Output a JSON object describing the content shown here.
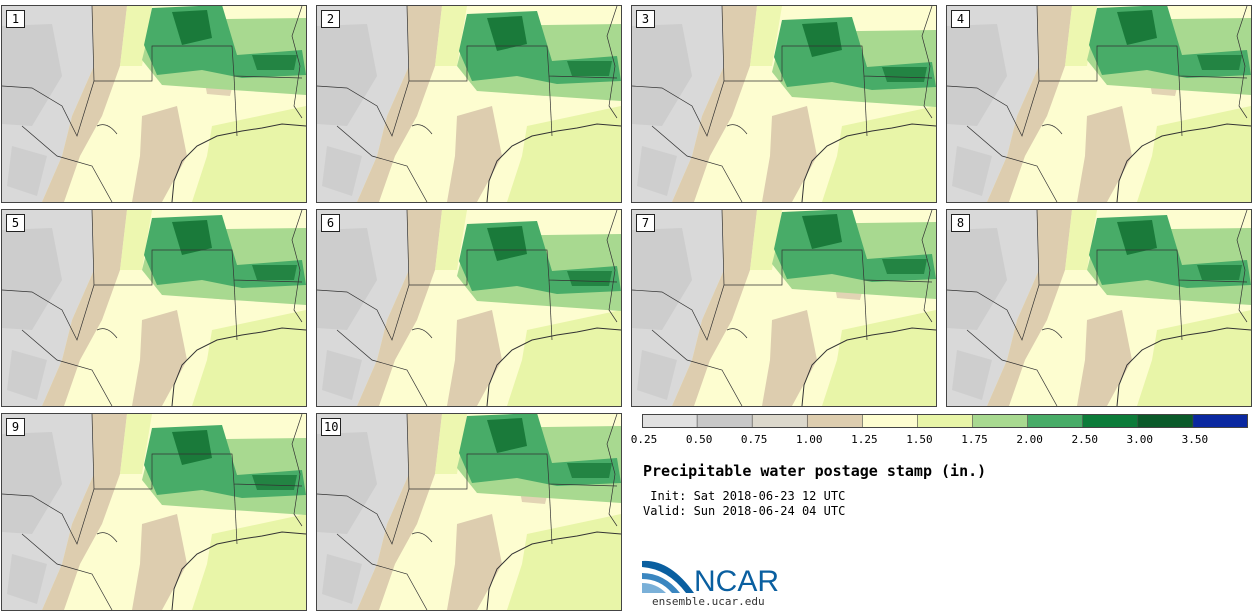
{
  "panels": [
    {
      "label": "1"
    },
    {
      "label": "2"
    },
    {
      "label": "3"
    },
    {
      "label": "4"
    },
    {
      "label": "5"
    },
    {
      "label": "6"
    },
    {
      "label": "7"
    },
    {
      "label": "8"
    },
    {
      "label": "9"
    },
    {
      "label": "10"
    }
  ],
  "colorbar": {
    "labels": [
      "0.25",
      "0.50",
      "0.75",
      "1.00",
      "1.25",
      "1.50",
      "1.75",
      "2.00",
      "2.50",
      "3.00",
      "3.50"
    ],
    "colors": [
      "#e1e1e1",
      "#c8c8c8",
      "#dcd8cc",
      "#ddcdaf",
      "#fdfdd0",
      "#e8f5a8",
      "#a8d990",
      "#48ac68",
      "#0c7c3a",
      "#0a5a2a",
      "#0a28a0"
    ]
  },
  "map_colors": {
    "gray_light": "#d9d9d9",
    "gray_dark": "#c4c4c4",
    "tan": "#ddcdaf",
    "cream": "#fdfdd0",
    "yellow_green": "#e8f5a8",
    "light_green": "#a8d990",
    "green": "#48ac68",
    "dark_green": "#1a7a3a"
  },
  "title": "Precipitable water postage stamp (in.)",
  "init": " Init: Sat 2018-06-23 12 UTC",
  "valid": "Valid: Sun 2018-06-24 04 UTC",
  "logo": {
    "text": "NCAR",
    "url": "ensemble.ucar.edu",
    "color": "#0a5fa0"
  }
}
